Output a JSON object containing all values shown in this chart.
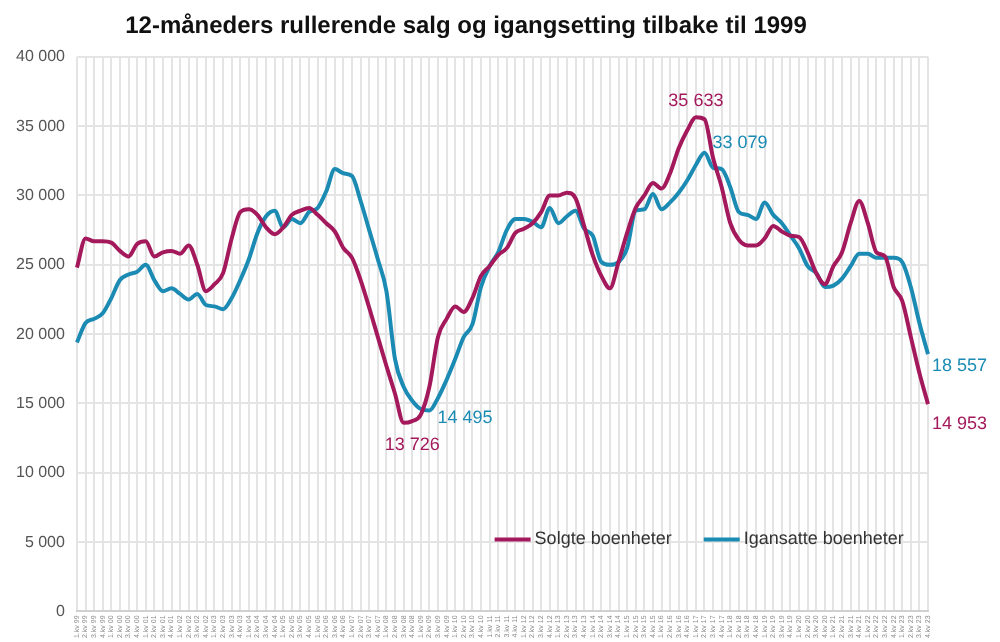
{
  "chart_data": {
    "type": "line",
    "title": "12-måneders rullerende salg og igangsetting tilbake til 1999",
    "categories": [
      "1.kv 99",
      "2.kv 99",
      "3.kv 99",
      "4.kv 99",
      "1.kv 00",
      "2.kv 00",
      "3.kv 00",
      "4.kv 00",
      "1.kv 01",
      "2.kv 01",
      "3.kv 01",
      "4.kv 01",
      "1.kv 02",
      "2.kv 02",
      "3.kv 02",
      "4.kv 02",
      "1.kv 03",
      "2.kv 03",
      "3.kv 03",
      "4.kv 03",
      "1.kv 04",
      "2.kv 04",
      "3.kv 04",
      "4.kv 04",
      "1.kv 05",
      "2.kv 05",
      "3.kv 05",
      "4.kv 05",
      "1.kv 06",
      "2.kv 06",
      "3.kv 06",
      "4.kv 06",
      "1.kv 07",
      "2.kv 07",
      "3.kv 07",
      "4.kv 07",
      "1.kv 08",
      "2.kv 08",
      "3.kv 08",
      "4.kv 08",
      "1.kv 09",
      "2.kv 09",
      "3.kv 09",
      "4.kv 09",
      "1.kv 10",
      "2.kv 10",
      "3.kv 10",
      "4.kv 10",
      "1.kv 11",
      "2.kv 11",
      "3.kv 11",
      "4.kv 11",
      "1.kv 12",
      "2.kv 12",
      "3.kv 12",
      "4.kv 12",
      "1.kv 13",
      "2.kv 13",
      "3.kv 13",
      "4.kv 13",
      "1.kv 14",
      "2.kv 14",
      "3.kv 14",
      "4.kv 14",
      "1.kv 15",
      "2.kv 15",
      "3.kv 15",
      "4.kv 15",
      "1.kv 16",
      "2.kv 16",
      "3.kv 16",
      "4.kv 16",
      "1.kv 17",
      "2.kv 17",
      "3.kv 17",
      "4.kv 17",
      "1.kv 18",
      "2.kv 18",
      "3.kv 18",
      "4.kv 18",
      "1.kv 19",
      "2.kv 19",
      "3.kv 19",
      "4.kv 19",
      "1.kv 20",
      "2.kv 20",
      "3.kv 20",
      "4.kv 20",
      "1.kv 21",
      "2.kv 21",
      "3.kv 21",
      "4.kv 21",
      "1.kv 22",
      "2.kv 22",
      "3.kv 22",
      "4.kv 22",
      "1.kv 23",
      "2.kv 23",
      "3.kv 23",
      "4.kv 23"
    ],
    "series": [
      {
        "name": "Solgte boenheter",
        "color": "#a3195b",
        "values": [
          24800,
          26900,
          26700,
          26700,
          26600,
          26000,
          25600,
          26500,
          26700,
          25600,
          25900,
          26000,
          25800,
          26400,
          25000,
          23100,
          23600,
          24400,
          26900,
          28800,
          29000,
          28600,
          27700,
          27200,
          27700,
          28600,
          28900,
          29100,
          28600,
          28000,
          27400,
          26200,
          25500,
          23900,
          21900,
          19800,
          17700,
          15700,
          13600,
          13726,
          14200,
          16200,
          19800,
          21100,
          22000,
          21600,
          22600,
          24200,
          24900,
          25700,
          26200,
          27300,
          27600,
          28000,
          28800,
          30000,
          30000,
          30200,
          29800,
          27800,
          25700,
          24200,
          23300,
          25200,
          27300,
          29100,
          30000,
          30900,
          30500,
          31600,
          33400,
          34700,
          35633,
          35500,
          32700,
          30600,
          28000,
          26800,
          26400,
          26400,
          26900,
          27800,
          27400,
          27100,
          27000,
          25900,
          24400,
          23600,
          24900,
          25900,
          28000,
          29600,
          28000,
          25900,
          25600,
          23400,
          22400,
          19800,
          17200,
          14953
        ],
        "value_labels": [
          null,
          null,
          null,
          null,
          null,
          null,
          null,
          null,
          null,
          null,
          null,
          null,
          null,
          null,
          null,
          null,
          null,
          null,
          null,
          null,
          null,
          null,
          null,
          null,
          null,
          null,
          null,
          null,
          null,
          null,
          null,
          null,
          null,
          null,
          null,
          null,
          null,
          null,
          null,
          "13 726",
          null,
          null,
          null,
          null,
          null,
          null,
          null,
          null,
          null,
          null,
          null,
          null,
          null,
          null,
          null,
          null,
          null,
          null,
          null,
          null,
          null,
          null,
          null,
          null,
          null,
          null,
          null,
          null,
          null,
          null,
          null,
          null,
          "35 633",
          null,
          null,
          null,
          null,
          null,
          null,
          null,
          null,
          null,
          null,
          null,
          null,
          null,
          null,
          null,
          null,
          null,
          null,
          null,
          null,
          null,
          null,
          null,
          null,
          null,
          null,
          "14 953"
        ]
      },
      {
        "name": "Igansatte boenheter",
        "color": "#1b8bb4",
        "values": [
          19400,
          20800,
          21100,
          21500,
          22600,
          23900,
          24300,
          24500,
          25000,
          23900,
          23100,
          23300,
          22900,
          22500,
          22900,
          22100,
          22000,
          21800,
          22600,
          23900,
          25400,
          27300,
          28500,
          28900,
          27700,
          28300,
          28000,
          28800,
          29100,
          30300,
          31900,
          31600,
          31400,
          29600,
          27500,
          25400,
          23100,
          18200,
          16200,
          15200,
          14600,
          14495,
          15400,
          16700,
          18200,
          19800,
          20700,
          23400,
          24900,
          25900,
          27500,
          28300,
          28300,
          28100,
          27700,
          29100,
          28000,
          28500,
          28900,
          27600,
          27100,
          25200,
          25000,
          25200,
          26200,
          28900,
          29000,
          30100,
          29000,
          29500,
          30200,
          31100,
          32200,
          33079,
          32000,
          31900,
          30600,
          28800,
          28600,
          28300,
          29500,
          28600,
          28000,
          27100,
          26200,
          24900,
          24400,
          23400,
          23500,
          24000,
          24900,
          25800,
          25800,
          25500,
          25500,
          25500,
          25200,
          23400,
          20800,
          18557
        ],
        "value_labels": [
          null,
          null,
          null,
          null,
          null,
          null,
          null,
          null,
          null,
          null,
          null,
          null,
          null,
          null,
          null,
          null,
          null,
          null,
          null,
          null,
          null,
          null,
          null,
          null,
          null,
          null,
          null,
          null,
          null,
          null,
          null,
          null,
          null,
          null,
          null,
          null,
          null,
          null,
          null,
          null,
          null,
          "14 495",
          null,
          null,
          null,
          null,
          null,
          null,
          null,
          null,
          null,
          null,
          null,
          null,
          null,
          null,
          null,
          null,
          null,
          null,
          null,
          null,
          null,
          null,
          null,
          null,
          null,
          null,
          null,
          null,
          null,
          null,
          null,
          "33 079",
          null,
          null,
          null,
          null,
          null,
          null,
          null,
          null,
          null,
          null,
          null,
          null,
          null,
          null,
          null,
          null,
          null,
          null,
          null,
          null,
          null,
          null,
          null,
          null,
          null,
          "18 557"
        ]
      }
    ],
    "ylim": [
      0,
      40000
    ],
    "yticks": [
      {
        "value": 0,
        "label": "0"
      },
      {
        "value": 5000,
        "label": "5 000"
      },
      {
        "value": 10000,
        "label": "10 000"
      },
      {
        "value": 15000,
        "label": "15 000"
      },
      {
        "value": 20000,
        "label": "20 000"
      },
      {
        "value": 25000,
        "label": "25 000"
      },
      {
        "value": 30000,
        "label": "30 000"
      },
      {
        "value": 35000,
        "label": "35 000"
      },
      {
        "value": 40000,
        "label": "40 000"
      }
    ],
    "grid": true,
    "legend": "bottom",
    "marker": "none",
    "line_style": "solid"
  }
}
